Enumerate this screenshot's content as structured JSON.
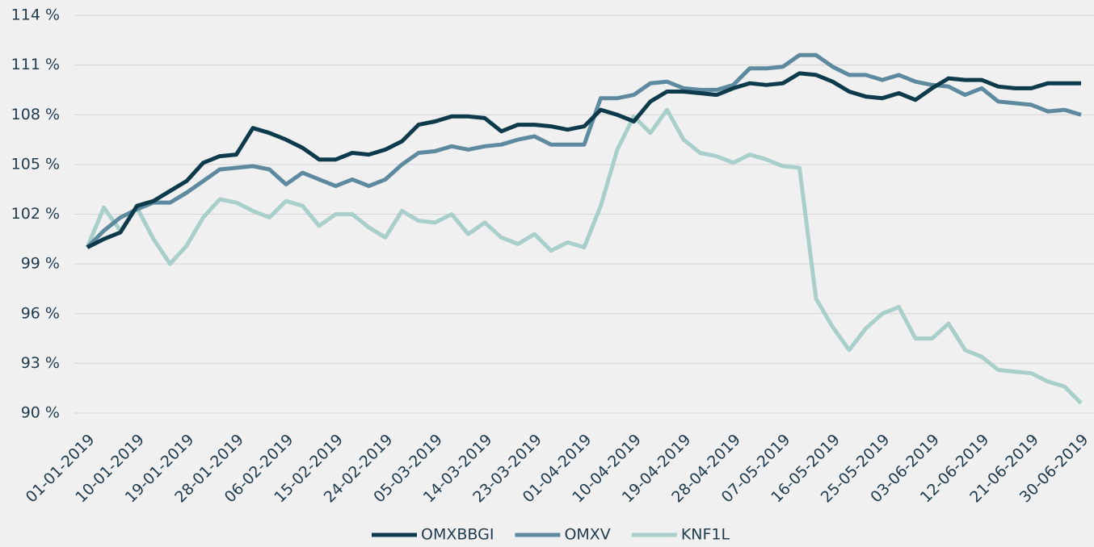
{
  "chart_data": {
    "type": "line",
    "x": [
      "01-01-2019",
      "04-01-2019",
      "07-01-2019",
      "10-01-2019",
      "13-01-2019",
      "16-01-2019",
      "19-01-2019",
      "22-01-2019",
      "25-01-2019",
      "28-01-2019",
      "31-01-2019",
      "03-02-2019",
      "06-02-2019",
      "09-02-2019",
      "12-02-2019",
      "15-02-2019",
      "18-02-2019",
      "21-02-2019",
      "24-02-2019",
      "27-02-2019",
      "02-03-2019",
      "05-03-2019",
      "08-03-2019",
      "11-03-2019",
      "14-03-2019",
      "17-03-2019",
      "20-03-2019",
      "23-03-2019",
      "26-03-2019",
      "29-03-2019",
      "01-04-2019",
      "04-04-2019",
      "07-04-2019",
      "10-04-2019",
      "13-04-2019",
      "16-04-2019",
      "19-04-2019",
      "22-04-2019",
      "25-04-2019",
      "28-04-2019",
      "01-05-2019",
      "04-05-2019",
      "07-05-2019",
      "10-05-2019",
      "13-05-2019",
      "16-05-2019",
      "19-05-2019",
      "22-05-2019",
      "25-05-2019",
      "28-05-2019",
      "31-05-2019",
      "03-06-2019",
      "06-06-2019",
      "09-06-2019",
      "12-06-2019",
      "15-06-2019",
      "18-06-2019",
      "21-06-2019",
      "24-06-2019",
      "27-06-2019",
      "30-06-2019"
    ],
    "series": [
      {
        "name": "OMXBBGI",
        "color": "#0d3b4c",
        "values": [
          100,
          100.5,
          100.9,
          102.5,
          102.8,
          103.4,
          104,
          105.1,
          105.5,
          105.6,
          107.2,
          106.9,
          106.5,
          106,
          105.3,
          105.3,
          105.7,
          105.6,
          105.9,
          106.4,
          107.4,
          107.6,
          107.9,
          107.9,
          107.8,
          107,
          107.4,
          107.4,
          107.3,
          107.1,
          107.3,
          108.3,
          108,
          107.6,
          108.8,
          109.4,
          109.4,
          109.3,
          109.2,
          109.6,
          109.9,
          109.8,
          109.9,
          110.5,
          110.4,
          110,
          109.4,
          109.1,
          109,
          109.3,
          108.9,
          109.6,
          110.2,
          110.1,
          110.1,
          109.7,
          109.6,
          109.6,
          109.9,
          109.9,
          109.9
        ]
      },
      {
        "name": "OMXV",
        "color": "#5e8aa0",
        "values": [
          100,
          101,
          101.8,
          102.3,
          102.7,
          102.7,
          103.3,
          104,
          104.7,
          104.8,
          104.9,
          104.7,
          103.8,
          104.5,
          104.1,
          103.7,
          104.1,
          103.7,
          104.1,
          105,
          105.7,
          105.8,
          106.1,
          105.9,
          106.1,
          106.2,
          106.5,
          106.7,
          106.2,
          106.2,
          106.2,
          109,
          109,
          109.2,
          109.9,
          110,
          109.6,
          109.5,
          109.5,
          109.8,
          110.8,
          110.8,
          110.9,
          111.6,
          111.6,
          110.9,
          110.4,
          110.4,
          110.1,
          110.4,
          110,
          109.8,
          109.7,
          109.2,
          109.6,
          108.8,
          108.7,
          108.6,
          108.2,
          108.3,
          108
        ]
      },
      {
        "name": "KNF1L",
        "color": "#a9cfca",
        "values": [
          100,
          102.4,
          101,
          102.4,
          100.5,
          99,
          100.1,
          101.8,
          102.9,
          102.7,
          102.2,
          101.8,
          102.8,
          102.5,
          101.3,
          102,
          102,
          101.2,
          100.6,
          102.2,
          101.6,
          101.5,
          102,
          100.8,
          101.5,
          100.6,
          100.2,
          100.8,
          99.8,
          100.3,
          100,
          102.5,
          105.9,
          107.9,
          106.9,
          108.3,
          106.5,
          105.7,
          105.5,
          105.1,
          105.6,
          105.3,
          104.9,
          104.8,
          96.9,
          95.2,
          93.8,
          95.1,
          96,
          96.4,
          94.5,
          94.5,
          95.4,
          93.8,
          93.4,
          92.6,
          92.5,
          92.4,
          91.9,
          91.6,
          90.6
        ]
      }
    ],
    "xlim": [
      "01-01-2019",
      "30-06-2019"
    ],
    "xticks": [
      "01-01-2019",
      "10-01-2019",
      "19-01-2019",
      "28-01-2019",
      "06-02-2019",
      "15-02-2019",
      "24-02-2019",
      "05-03-2019",
      "14-03-2019",
      "23-03-2019",
      "01-04-2019",
      "10-04-2019",
      "19-04-2019",
      "28-04-2019",
      "07-05-2019",
      "16-05-2019",
      "25-05-2019",
      "03-06-2019",
      "12-06-2019",
      "21-06-2019",
      "30-06-2019"
    ],
    "ylim": [
      90,
      114
    ],
    "yticks": [
      {
        "value": 90,
        "label": "90 %"
      },
      {
        "value": 93,
        "label": "93 %"
      },
      {
        "value": 96,
        "label": "96 %"
      },
      {
        "value": 99,
        "label": "99 %"
      },
      {
        "value": 102,
        "label": "102 %"
      },
      {
        "value": 105,
        "label": "105 %"
      },
      {
        "value": 108,
        "label": "108 %"
      },
      {
        "value": 111,
        "label": "111 %"
      },
      {
        "value": 114,
        "label": "114 %"
      }
    ],
    "grid": true,
    "legend": "bottom"
  }
}
